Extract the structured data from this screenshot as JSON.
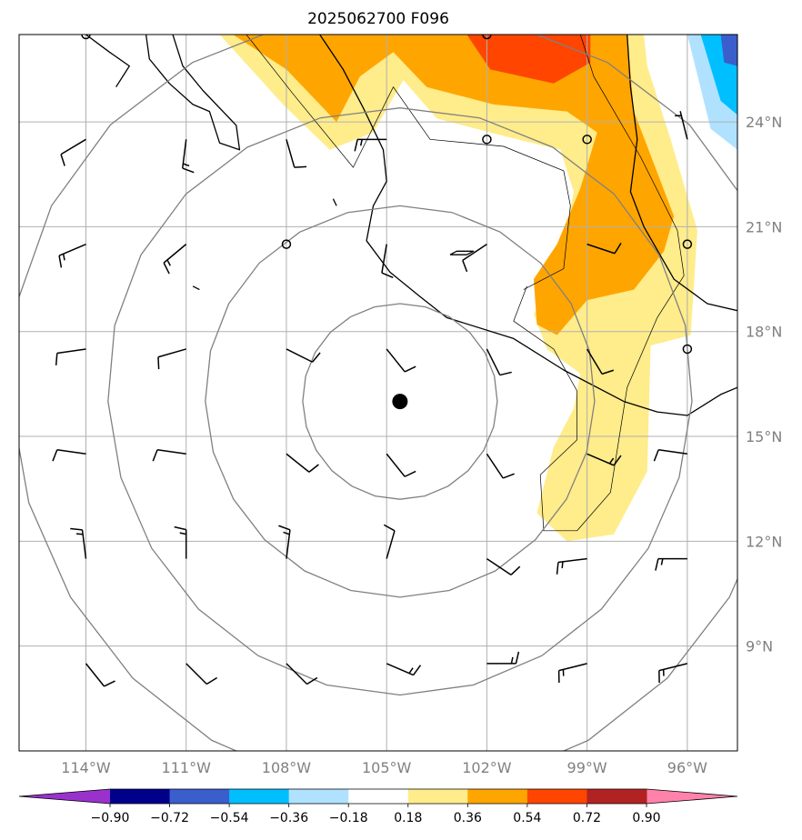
{
  "chart_data": {
    "type": "map",
    "title": "2025062700 F096",
    "xlim": [
      -116,
      -94.5
    ],
    "ylim": [
      6,
      26.5
    ],
    "x_ticks": [
      {
        "value": -114,
        "label": "114°W"
      },
      {
        "value": -111,
        "label": "111°W"
      },
      {
        "value": -108,
        "label": "108°W"
      },
      {
        "value": -105,
        "label": "105°W"
      },
      {
        "value": -102,
        "label": "102°W"
      },
      {
        "value": -99,
        "label": "99°W"
      },
      {
        "value": -96,
        "label": "96°W"
      }
    ],
    "y_ticks": [
      {
        "value": 9,
        "label": "9°N"
      },
      {
        "value": 12,
        "label": "12°N"
      },
      {
        "value": 15,
        "label": "15°N"
      },
      {
        "value": 18,
        "label": "18°N"
      },
      {
        "value": 21,
        "label": "21°N"
      },
      {
        "value": 24,
        "label": "24°N"
      }
    ],
    "grid": true,
    "center": {
      "lon": -104.6,
      "lat": 16.0
    },
    "range_rings_deg": [
      2.8,
      5.6,
      8.4,
      11.2
    ],
    "colorbar": {
      "position": "bottom",
      "bounds": [
        -1.08,
        -0.9,
        -0.72,
        -0.54,
        -0.36,
        -0.18,
        0.18,
        0.36,
        0.54,
        0.72,
        0.9,
        1.08
      ],
      "tick_labels": [
        "−0.90",
        "−0.72",
        "−0.54",
        "−0.36",
        "−0.18",
        "0.18",
        "0.36",
        "0.54",
        "0.72",
        "0.90"
      ],
      "colors": [
        "#9932cc",
        "#00008b",
        "#3a5fcd",
        "#00bfff",
        "#b0e2ff",
        "#ffffff",
        "#ffec8b",
        "#ffa500",
        "#ff4500",
        "#b22222",
        "#ff82ab"
      ],
      "extend": "both"
    },
    "wind_barbs": [
      {
        "lon": -114,
        "lat": 26.5,
        "u": 0,
        "v": 0
      },
      {
        "lon": -111,
        "lat": 26.5,
        "u": 0,
        "v": -3
      },
      {
        "lon": -108,
        "lat": 26.5,
        "u": 0,
        "v": -3
      },
      {
        "lon": -105,
        "lat": 26.5,
        "u": 5,
        "v": -3
      },
      {
        "lon": -102,
        "lat": 26.5,
        "u": 0,
        "v": 0
      },
      {
        "lon": -99,
        "lat": 26.5,
        "u": 0,
        "v": -3
      },
      {
        "lon": -96,
        "lat": 26.5,
        "u": 2,
        "v": -6
      },
      {
        "lon": -114,
        "lat": 23.5,
        "u": 5,
        "v": 3
      },
      {
        "lon": -111,
        "lat": 23.5,
        "u": 1,
        "v": 8
      },
      {
        "lon": -108,
        "lat": 23.5,
        "u": -2,
        "v": 7
      },
      {
        "lon": -105,
        "lat": 23.5,
        "u": 8,
        "v": 0
      },
      {
        "lon": -102,
        "lat": 23.5,
        "u": 0,
        "v": 0
      },
      {
        "lon": -99,
        "lat": 23.5,
        "u": 0,
        "v": 0
      },
      {
        "lon": -96,
        "lat": 23.5,
        "u": 1,
        "v": -4
      },
      {
        "lon": -114,
        "lat": 20.5,
        "u": 7,
        "v": 3
      },
      {
        "lon": -111,
        "lat": 20.5,
        "u": 6,
        "v": 5
      },
      {
        "lon": -108,
        "lat": 20.5,
        "u": 0,
        "v": 0
      },
      {
        "lon": -105,
        "lat": 20.5,
        "u": 1,
        "v": 6
      },
      {
        "lon": -102,
        "lat": 20.5,
        "u": 6,
        "v": 4
      },
      {
        "lon": -99,
        "lat": 20.5,
        "u": -6,
        "v": 2
      },
      {
        "lon": -96,
        "lat": 20.5,
        "u": 0,
        "v": 0
      },
      {
        "lon": -114,
        "lat": 17.5,
        "u": 7,
        "v": 1
      },
      {
        "lon": -111,
        "lat": 17.5,
        "u": 7,
        "v": 2
      },
      {
        "lon": -108,
        "lat": 17.5,
        "u": -6,
        "v": 3
      },
      {
        "lon": -105,
        "lat": 17.5,
        "u": -4,
        "v": 5
      },
      {
        "lon": -102,
        "lat": 17.5,
        "u": -3,
        "v": 6
      },
      {
        "lon": -99,
        "lat": 17.5,
        "u": -3,
        "v": 5
      },
      {
        "lon": -96,
        "lat": 17.5,
        "u": 0,
        "v": 0
      },
      {
        "lon": -114,
        "lat": 14.5,
        "u": 7,
        "v": -1
      },
      {
        "lon": -111,
        "lat": 14.5,
        "u": 7,
        "v": -1
      },
      {
        "lon": -108,
        "lat": 14.5,
        "u": -5,
        "v": 4
      },
      {
        "lon": -105,
        "lat": 14.5,
        "u": -4,
        "v": 5
      },
      {
        "lon": -102,
        "lat": 14.5,
        "u": -4,
        "v": 6
      },
      {
        "lon": -99,
        "lat": 14.5,
        "u": -7,
        "v": 3
      },
      {
        "lon": -96,
        "lat": 14.5,
        "u": 7,
        "v": -1
      },
      {
        "lon": -114,
        "lat": 11.5,
        "u": 1,
        "v": -8
      },
      {
        "lon": -111,
        "lat": 11.5,
        "u": 0,
        "v": -8
      },
      {
        "lon": -108,
        "lat": 11.5,
        "u": -1,
        "v": -8
      },
      {
        "lon": -105,
        "lat": 11.5,
        "u": -2,
        "v": -7
      },
      {
        "lon": -102,
        "lat": 11.5,
        "u": -6,
        "v": 4
      },
      {
        "lon": -99,
        "lat": 11.5,
        "u": 8,
        "v": 1
      },
      {
        "lon": -96,
        "lat": 11.5,
        "u": 8,
        "v": 0
      },
      {
        "lon": -114,
        "lat": 8.5,
        "u": -4,
        "v": 5
      },
      {
        "lon": -111,
        "lat": 8.5,
        "u": -5,
        "v": 5
      },
      {
        "lon": -108,
        "lat": 8.5,
        "u": -5,
        "v": 5
      },
      {
        "lon": -105,
        "lat": 8.5,
        "u": -7,
        "v": 3
      },
      {
        "lon": -102,
        "lat": 8.5,
        "u": -8,
        "v": 0
      },
      {
        "lon": -99,
        "lat": 8.5,
        "u": 8,
        "v": 2
      },
      {
        "lon": -96,
        "lat": 8.5,
        "u": 8,
        "v": 2
      }
    ],
    "shaded_regions": [
      {
        "level": 0.18,
        "color": "#ffec8b",
        "points": [
          [
            -110,
            26.5
          ],
          [
            -108.1,
            24.5
          ],
          [
            -106.7,
            23.2
          ],
          [
            -105.4,
            23.7
          ],
          [
            -104.5,
            25.2
          ],
          [
            -103.5,
            24.1
          ],
          [
            -101.5,
            23.6
          ],
          [
            -99.8,
            23.2
          ],
          [
            -99.4,
            22.0
          ],
          [
            -99.9,
            19.6
          ],
          [
            -100.6,
            18.5
          ],
          [
            -100.2,
            17.5
          ],
          [
            -99.2,
            16.8
          ],
          [
            -99.4,
            15.8
          ],
          [
            -100.0,
            14.7
          ],
          [
            -100.5,
            12.8
          ],
          [
            -99.6,
            12.0
          ],
          [
            -98.2,
            12.2
          ],
          [
            -97.2,
            14.0
          ],
          [
            -97.1,
            17.6
          ],
          [
            -95.9,
            17.9
          ],
          [
            -95.7,
            20.9
          ],
          [
            -96.5,
            23.5
          ],
          [
            -97.2,
            25.6
          ],
          [
            -97.3,
            26.5
          ]
        ]
      },
      {
        "level": 0.36,
        "color": "#ffa500",
        "points": [
          [
            -109.6,
            26.5
          ],
          [
            -108.0,
            25.5
          ],
          [
            -106.5,
            24.0
          ],
          [
            -105.8,
            25.3
          ],
          [
            -104.8,
            26.0
          ],
          [
            -103.8,
            25.0
          ],
          [
            -101.8,
            24.5
          ],
          [
            -99.6,
            24.3
          ],
          [
            -98.7,
            23.7
          ],
          [
            -99.2,
            22.1
          ],
          [
            -99.9,
            20.5
          ],
          [
            -100.6,
            19.5
          ],
          [
            -100.5,
            18.2
          ],
          [
            -99.9,
            17.9
          ],
          [
            -99.0,
            18.9
          ],
          [
            -97.6,
            19.2
          ],
          [
            -96.7,
            20.3
          ],
          [
            -96.4,
            21.3
          ],
          [
            -97.6,
            24.3
          ],
          [
            -97.8,
            26.5
          ]
        ]
      },
      {
        "level": 0.54,
        "color": "#ff4500",
        "points": [
          [
            -102.6,
            26.5
          ],
          [
            -101.9,
            25.5
          ],
          [
            -100.0,
            25.1
          ],
          [
            -98.9,
            25.7
          ],
          [
            -98.9,
            26.5
          ]
        ]
      },
      {
        "level": -0.36,
        "color": "#b0e2ff",
        "points": [
          [
            -96.0,
            26.5
          ],
          [
            -95.3,
            23.8
          ],
          [
            -94.5,
            23.2
          ],
          [
            -94.5,
            26.5
          ]
        ]
      },
      {
        "level": -0.54,
        "color": "#00bfff",
        "points": [
          [
            -95.6,
            26.5
          ],
          [
            -95.0,
            24.6
          ],
          [
            -94.5,
            24.2
          ],
          [
            -94.5,
            26.5
          ]
        ]
      },
      {
        "level": -0.72,
        "color": "#3a5fcd",
        "points": [
          [
            -95.0,
            26.5
          ],
          [
            -94.9,
            25.7
          ],
          [
            -94.5,
            25.6
          ],
          [
            -94.5,
            26.5
          ]
        ]
      }
    ],
    "contours": [
      [
        [
          -100.8,
          19.3
        ],
        [
          -101.2,
          18.3
        ],
        [
          -100.0,
          17.5
        ],
        [
          -99.3,
          16.3
        ],
        [
          -99.3,
          14.9
        ],
        [
          -100.4,
          13.9
        ],
        [
          -100.3,
          12.3
        ],
        [
          -99.3,
          12.3
        ],
        [
          -98.3,
          13.4
        ],
        [
          -97.8,
          16.4
        ],
        [
          -96.9,
          18.4
        ],
        [
          -96.1,
          19.6
        ],
        [
          -96.3,
          20.9
        ],
        [
          -97.4,
          23.0
        ],
        [
          -98.8,
          25.3
        ],
        [
          -99.2,
          26.5
        ]
      ],
      [
        [
          -109.2,
          26.5
        ],
        [
          -107.8,
          24.8
        ],
        [
          -106.0,
          22.7
        ],
        [
          -104.8,
          25.0
        ],
        [
          -103.7,
          23.5
        ],
        [
          -101.5,
          23.3
        ],
        [
          -99.7,
          22.6
        ],
        [
          -99.5,
          21.6
        ],
        [
          -99.7,
          19.8
        ],
        [
          -100.9,
          19.2
        ]
      ]
    ],
    "coastlines": [
      [
        [
          -112.2,
          26.5
        ],
        [
          -112.1,
          25.8
        ],
        [
          -111.5,
          25.1
        ],
        [
          -110.8,
          24.5
        ],
        [
          -110.3,
          24.3
        ],
        [
          -110.0,
          23.4
        ],
        [
          -109.4,
          23.2
        ],
        [
          -109.5,
          23.9
        ],
        [
          -110.5,
          24.9
        ],
        [
          -111.1,
          25.6
        ],
        [
          -111.4,
          26.5
        ]
      ],
      [
        [
          -107.0,
          26.5
        ],
        [
          -106.3,
          25.5
        ],
        [
          -105.7,
          24.4
        ],
        [
          -105.1,
          23.2
        ],
        [
          -105.0,
          22.3
        ],
        [
          -105.4,
          21.6
        ],
        [
          -105.6,
          20.6
        ],
        [
          -104.9,
          19.7
        ],
        [
          -104.0,
          19.0
        ],
        [
          -103.2,
          18.4
        ],
        [
          -101.2,
          17.8
        ],
        [
          -99.7,
          16.9
        ],
        [
          -97.9,
          16.0
        ],
        [
          -96.9,
          15.7
        ],
        [
          -96.0,
          15.6
        ],
        [
          -95.0,
          16.2
        ],
        [
          -94.5,
          16.4
        ]
      ],
      [
        [
          -97.8,
          26.5
        ],
        [
          -97.7,
          25.0
        ],
        [
          -97.5,
          23.5
        ],
        [
          -97.7,
          22.0
        ],
        [
          -97.3,
          21.0
        ],
        [
          -96.4,
          19.5
        ],
        [
          -95.4,
          18.8
        ],
        [
          -94.5,
          18.6
        ]
      ],
      [
        [
          -114.0,
          26.5
        ],
        [
          -113.3,
          26.0
        ],
        [
          -112.7,
          25.6
        ],
        [
          -113.1,
          25.0
        ]
      ],
      [
        [
          -103.1,
          20.2
        ],
        [
          -102.9,
          20.3
        ],
        [
          -102.4,
          20.3
        ],
        [
          -102.6,
          20.2
        ],
        [
          -103.1,
          20.2
        ]
      ],
      [
        [
          -110.8,
          19.3
        ],
        [
          -110.6,
          19.2
        ]
      ],
      [
        [
          -106.6,
          21.8
        ],
        [
          -106.5,
          21.6
        ]
      ]
    ]
  }
}
